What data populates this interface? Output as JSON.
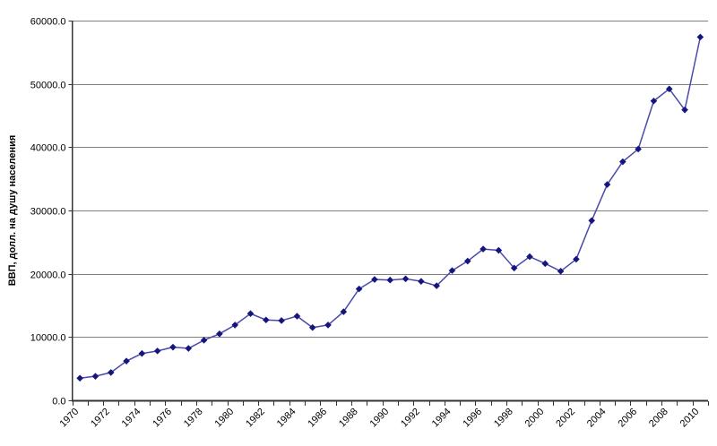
{
  "chart_data": {
    "type": "line",
    "title": "",
    "xlabel": "",
    "ylabel": "ВВП, долл. на душу населения",
    "x": [
      1970,
      1971,
      1972,
      1973,
      1974,
      1975,
      1976,
      1977,
      1978,
      1979,
      1980,
      1981,
      1982,
      1983,
      1984,
      1985,
      1986,
      1987,
      1988,
      1989,
      1990,
      1991,
      1992,
      1993,
      1994,
      1995,
      1996,
      1997,
      1998,
      1999,
      2000,
      2001,
      2002,
      2003,
      2004,
      2005,
      2006,
      2007,
      2008,
      2009,
      2010
    ],
    "values": [
      3500,
      3800,
      4400,
      6200,
      7400,
      7800,
      8400,
      8200,
      9500,
      10500,
      11900,
      13700,
      12700,
      12600,
      13300,
      11500,
      11900,
      14000,
      17600,
      19100,
      19000,
      19200,
      18800,
      18100,
      20500,
      22000,
      23900,
      23700,
      20900,
      22700,
      21600,
      20400,
      22300,
      28400,
      34100,
      37700,
      39700,
      47300,
      49200,
      45900,
      57400
    ],
    "ylim": [
      0,
      60000
    ],
    "ytick_step": 10000,
    "ytick_labels": [
      "0.0",
      "10000.0",
      "20000.0",
      "30000.0",
      "40000.0",
      "50000.0",
      "60000.0"
    ],
    "xtick_label_every": 2,
    "grid": "horizontal-major",
    "legend": "none",
    "marker": "diamond",
    "colors": {
      "line": "#4a4aa8",
      "marker": "#151580",
      "gridline": "#808080",
      "axis": "#333333",
      "background": "#ffffff",
      "text": "#000000"
    }
  }
}
